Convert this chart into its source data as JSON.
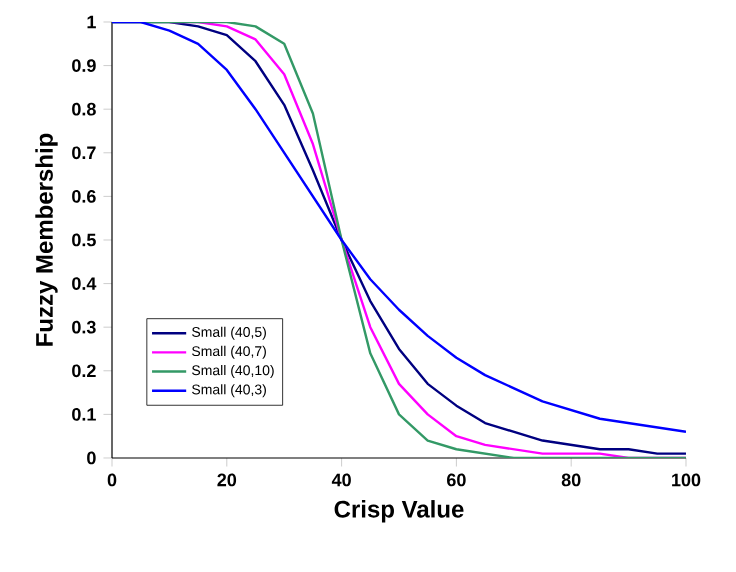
{
  "chart_data": {
    "type": "line",
    "xlabel": "Crisp Value",
    "ylabel": "Fuzzy Membership",
    "x": [
      0,
      5,
      10,
      15,
      20,
      25,
      30,
      35,
      40,
      45,
      50,
      55,
      60,
      65,
      70,
      75,
      80,
      85,
      90,
      95,
      100
    ],
    "series": [
      {
        "name": "Small (40,5)",
        "color": "#000080",
        "values": [
          1,
          1,
          1,
          0.99,
          0.97,
          0.91,
          0.81,
          0.66,
          0.5,
          0.36,
          0.25,
          0.17,
          0.12,
          0.08,
          0.06,
          0.04,
          0.03,
          0.02,
          0.02,
          0.01,
          0.01
        ]
      },
      {
        "name": "Small (40,7)",
        "color": "#ff00ff",
        "values": [
          null,
          null,
          1,
          1,
          0.99,
          0.96,
          0.88,
          0.72,
          0.5,
          0.3,
          0.17,
          0.1,
          0.05,
          0.03,
          0.02,
          0.01,
          0.01,
          0.01,
          0,
          0,
          0
        ]
      },
      {
        "name": "Small (40,10)",
        "color": "#339966",
        "values": [
          1,
          1,
          1,
          1,
          1,
          0.99,
          0.95,
          0.79,
          0.5,
          0.24,
          0.1,
          0.04,
          0.02,
          0.01,
          0,
          0,
          0,
          0,
          0,
          0,
          0
        ]
      },
      {
        "name": "Small (40,3)",
        "color": "#0000ff",
        "values": [
          1,
          1,
          0.98,
          0.95,
          0.89,
          0.8,
          0.7,
          0.6,
          0.5,
          0.41,
          0.34,
          0.28,
          0.23,
          0.19,
          0.16,
          0.13,
          0.11,
          0.09,
          0.08,
          0.07,
          0.06
        ]
      }
    ],
    "xlim": [
      0,
      100
    ],
    "xticks": [
      0,
      20,
      40,
      60,
      80,
      100
    ],
    "ylim": [
      0,
      1
    ],
    "yticks": [
      0,
      0.1,
      0.2,
      0.3,
      0.4,
      0.5,
      0.6,
      0.7,
      0.8,
      0.9,
      1
    ],
    "legend": "bottom left",
    "grid": false,
    "marker": "none",
    "line_style": "solid"
  }
}
